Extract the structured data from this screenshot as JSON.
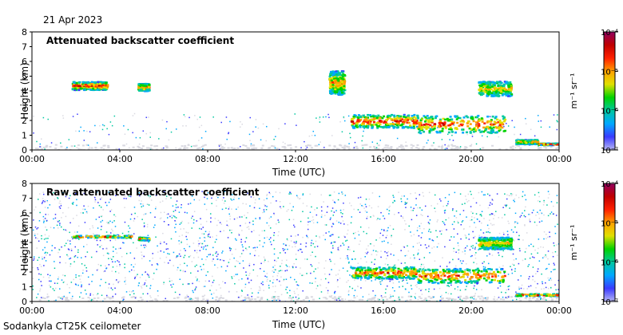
{
  "header": {
    "date": "21 Apr 2023"
  },
  "footer": {
    "site": "Sodankyla CT25K ceilometer"
  },
  "colors": {
    "background": "#ffffff",
    "no_signal": "#d9d9e1",
    "scale": [
      "#b8b8f4",
      "#3a3aff",
      "#00a8ff",
      "#00c8a0",
      "#00d200",
      "#e0e000",
      "#ffa000",
      "#ff2000",
      "#c00000",
      "#900060"
    ]
  },
  "chart_data": [
    {
      "type": "heatmap",
      "title": "Attenuated backscatter coefficient",
      "xlabel": "Time (UTC)",
      "ylabel": "Height (km)",
      "xlim": [
        0,
        24
      ],
      "ylim": [
        0,
        8
      ],
      "x_ticks": [
        "00:00",
        "04:00",
        "08:00",
        "12:00",
        "16:00",
        "20:00",
        "00:00"
      ],
      "y_ticks": [
        "0",
        "1",
        "2",
        "3",
        "4",
        "5",
        "6",
        "7",
        "8"
      ],
      "colorbar": {
        "label": "m⁻¹ sr⁻¹",
        "scale": "log",
        "range": [
          1e-07,
          0.0001
        ],
        "ticks": [
          "10⁻⁷",
          "10⁻⁶",
          "10⁻⁵",
          "10⁻⁴"
        ]
      },
      "features": [
        {
          "kind": "cloud",
          "t": [
            1.8,
            3.4
          ],
          "h": 4.4,
          "thick": 0.55,
          "peak": 7.5
        },
        {
          "kind": "cloud",
          "t": [
            4.8,
            5.3
          ],
          "h": 4.3,
          "thick": 0.5,
          "peak": 6.5
        },
        {
          "kind": "cloud",
          "t": [
            13.5,
            14.2
          ],
          "h": 4.6,
          "thick": 1.6,
          "peak": 6
        },
        {
          "kind": "cloud",
          "t": [
            14.5,
            17.5
          ],
          "h": 2.0,
          "thick": 0.9,
          "peak": 7.5
        },
        {
          "kind": "cloud",
          "t": [
            17.5,
            21.5
          ],
          "h": 1.8,
          "thick": 1.2,
          "peak": 7
        },
        {
          "kind": "cloud",
          "t": [
            20.3,
            21.8
          ],
          "h": 4.2,
          "thick": 1.0,
          "peak": 5.5
        },
        {
          "kind": "cloud",
          "t": [
            22.0,
            23.0
          ],
          "h": 0.6,
          "thick": 0.3,
          "peak": 6
        },
        {
          "kind": "layer",
          "t": [
            23.0,
            24.0
          ],
          "h": 0.45,
          "thick": 0.12,
          "peak": 8
        }
      ]
    },
    {
      "type": "heatmap",
      "title": "Raw attenuated backscatter coefficient",
      "xlabel": "Time (UTC)",
      "ylabel": "Height (km)",
      "xlim": [
        0,
        24
      ],
      "ylim": [
        0,
        8
      ],
      "x_ticks": [
        "00:00",
        "04:00",
        "08:00",
        "12:00",
        "16:00",
        "20:00",
        "00:00"
      ],
      "y_ticks": [
        "0",
        "1",
        "2",
        "3",
        "4",
        "5",
        "6",
        "7",
        "8"
      ],
      "colorbar": {
        "label": "m⁻¹ sr⁻¹",
        "scale": "log",
        "range": [
          1e-07,
          0.0001
        ],
        "ticks": [
          "10⁻⁷",
          "10⁻⁶",
          "10⁻⁵",
          "10⁻⁴"
        ]
      },
      "features": [
        {
          "kind": "layer",
          "t": [
            1.8,
            4.5
          ],
          "h": 4.45,
          "thick": 0.15,
          "peak": 7.5
        },
        {
          "kind": "layer",
          "t": [
            4.8,
            5.3
          ],
          "h": 4.3,
          "thick": 0.2,
          "peak": 6.5
        },
        {
          "kind": "cloud",
          "t": [
            14.5,
            17.5
          ],
          "h": 2.0,
          "thick": 0.8,
          "peak": 7
        },
        {
          "kind": "cloud",
          "t": [
            17.5,
            21.5
          ],
          "h": 1.8,
          "thick": 1.0,
          "peak": 7
        },
        {
          "kind": "cloud",
          "t": [
            20.3,
            21.8
          ],
          "h": 4.0,
          "thick": 0.8,
          "peak": 5.5
        },
        {
          "kind": "layer",
          "t": [
            22.0,
            24.0
          ],
          "h": 0.5,
          "thick": 0.15,
          "peak": 7.5
        }
      ]
    }
  ]
}
